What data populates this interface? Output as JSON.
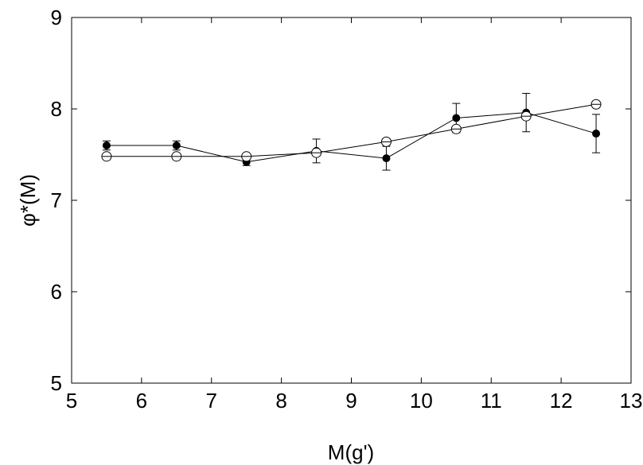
{
  "chart_data": {
    "type": "scatter",
    "title": "",
    "xlabel": "M(g')",
    "ylabel": "φ*(M)",
    "xlim": [
      5,
      13
    ],
    "ylim": [
      5,
      9
    ],
    "xticks": [
      "5",
      "6",
      "7",
      "8",
      "9",
      "10",
      "11",
      "12",
      "13"
    ],
    "yticks": [
      "5",
      "6",
      "7",
      "8",
      "9"
    ],
    "grid": false,
    "series": [
      {
        "marker": "filled-circle",
        "color": "#000000",
        "x": [
          5.5,
          6.5,
          7.5,
          8.5,
          9.5,
          10.5,
          11.5,
          12.5
        ],
        "y": [
          7.6,
          7.6,
          7.42,
          7.54,
          7.46,
          7.9,
          7.96,
          7.73
        ],
        "err": [
          0.05,
          0.05,
          0.04,
          0.13,
          0.13,
          0.16,
          0.21,
          0.21
        ]
      },
      {
        "marker": "open-circle",
        "color": "#000000",
        "x": [
          5.5,
          6.5,
          7.5,
          8.5,
          9.5,
          10.5,
          11.5,
          12.5
        ],
        "y": [
          7.48,
          7.48,
          7.48,
          7.52,
          7.64,
          7.78,
          7.92,
          8.05
        ],
        "err": [
          0,
          0,
          0,
          0,
          0,
          0,
          0,
          0
        ]
      }
    ]
  }
}
